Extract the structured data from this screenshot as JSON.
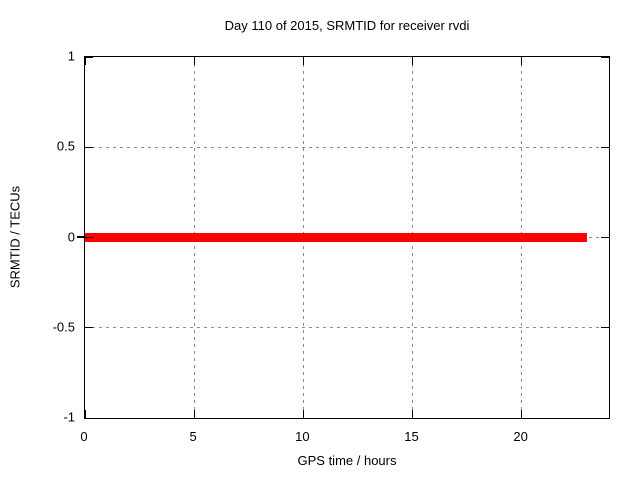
{
  "chart_data": {
    "type": "line",
    "title": "Day 110 of 2015, SRMTID for receiver rvdi",
    "xlabel": "GPS time / hours",
    "ylabel": "SRMTID / TECUs",
    "xlim": [
      0,
      24
    ],
    "ylim": [
      -1,
      1
    ],
    "xticks": [
      0,
      5,
      10,
      15,
      20
    ],
    "xtick_labels": [
      "0",
      "5",
      "10",
      "15",
      "20"
    ],
    "yticks": [
      1,
      0.5,
      0,
      -0.5,
      -1
    ],
    "ytick_labels": [
      "1",
      "0.5",
      "0",
      "-0.5",
      "-1"
    ],
    "grid": true,
    "legend": "none",
    "series": [
      {
        "name": "SRMTID",
        "color": "#ff0000",
        "style": "thick-flat-line",
        "x": [
          0,
          23
        ],
        "y": [
          0,
          0
        ]
      }
    ],
    "colors": {
      "line": "#ff0000",
      "grid": "#8c8c8c",
      "axis": "#000000",
      "background": "#ffffff",
      "text": "#000000"
    }
  }
}
